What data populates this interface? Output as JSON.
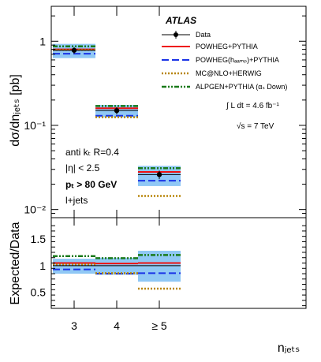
{
  "chart_data": {
    "type": "line",
    "experiment": "ATLAS",
    "luminosity": "∫ L dt = 4.6 fb⁻¹",
    "energy": "√s = 7 TeV",
    "selection": [
      "anti kₜ R=0.4",
      "|η| < 2.5",
      "pₜ > 80 GeV",
      "l+jets"
    ],
    "categories": [
      "3",
      "4",
      "≥ 5"
    ],
    "top": {
      "ylabel": "dσ/dnⱼₑₜₛ [pb]",
      "yscale": "log",
      "ylim": [
        0.008,
        2.6
      ],
      "yticks": [
        {
          "v": 1,
          "label": "1"
        },
        {
          "v": 0.1,
          "label": "10⁻¹"
        },
        {
          "v": 0.01,
          "label": "10⁻²"
        }
      ],
      "data": {
        "values": [
          0.78,
          0.15,
          0.026
        ],
        "errors": [
          0.07,
          0.015,
          0.003
        ]
      },
      "uncertainty_band": [
        [
          0.63,
          0.93
        ],
        [
          0.125,
          0.175
        ],
        [
          0.019,
          0.033
        ]
      ],
      "series": [
        {
          "name": "POWHEG+PYTHIA",
          "color": "#ee1111",
          "style": "solid",
          "values": [
            0.8,
            0.16,
            0.028
          ]
        },
        {
          "name": "POWHEG(hₐₐₘₚ)+PYTHIA",
          "color": "#1a33e6",
          "style": "dashed",
          "values": [
            0.71,
            0.13,
            0.022
          ]
        },
        {
          "name": "MC@NLO+HERWIG",
          "color": "#b8860b",
          "style": "dotted",
          "values": [
            0.79,
            0.125,
            0.0145
          ]
        },
        {
          "name": "ALPGEN+PYTHIA (αₛ Down)",
          "color": "#1a7a1a",
          "style": "dashdot",
          "values": [
            0.87,
            0.17,
            0.031
          ]
        }
      ],
      "legend_data_label": "Data"
    },
    "ratio": {
      "ylabel": "Expected/Data",
      "ylim": [
        0.2,
        1.9
      ],
      "yticks": [
        {
          "v": 0.5,
          "label": "0.5"
        },
        {
          "v": 1,
          "label": "1"
        },
        {
          "v": 1.5,
          "label": "1.5"
        }
      ],
      "uncertainty_band": [
        [
          0.85,
          1.13
        ],
        [
          0.83,
          1.15
        ],
        [
          0.7,
          1.28
        ]
      ],
      "series_values": [
        [
          1.05,
          1.04,
          1.05
        ],
        [
          0.93,
          0.85,
          0.86
        ],
        [
          1.02,
          0.86,
          0.57
        ],
        [
          1.18,
          1.14,
          1.2
        ]
      ]
    },
    "xlabel": "nⱼₑₜₛ"
  }
}
